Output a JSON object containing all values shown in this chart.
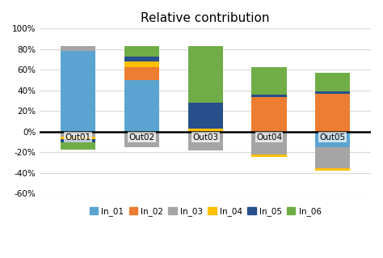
{
  "categories": [
    "Out01",
    "Out02",
    "Out03",
    "Out04",
    "Out05"
  ],
  "series": {
    "In_01": [
      78,
      50,
      0,
      0,
      0
    ],
    "In_02": [
      0,
      13,
      0,
      34,
      37
    ],
    "In_03": [
      5,
      0,
      0,
      0,
      0
    ],
    "In_04": [
      0,
      5,
      3,
      0,
      0
    ],
    "In_05": [
      0,
      5,
      25,
      2,
      2
    ],
    "In_06": [
      0,
      10,
      55,
      27,
      18
    ]
  },
  "neg_series": {
    "In_01": [
      0,
      0,
      0,
      0,
      -15
    ],
    "In_02": [
      0,
      0,
      0,
      0,
      0
    ],
    "In_03": [
      -5,
      -15,
      -18,
      -22,
      -20
    ],
    "In_04": [
      -2,
      0,
      0,
      -2,
      -3
    ],
    "In_05": [
      -3,
      0,
      0,
      0,
      0
    ],
    "In_06": [
      -7,
      0,
      0,
      0,
      0
    ]
  },
  "colors": {
    "In_01": "#5BA3D0",
    "In_02": "#ED7D31",
    "In_03": "#A5A5A5",
    "In_04": "#FFC000",
    "In_05": "#264F8C",
    "In_06": "#70AD47"
  },
  "title": "Relative contribution",
  "ylim": [
    -60,
    100
  ],
  "yticks": [
    -60,
    -40,
    -20,
    0,
    20,
    40,
    60,
    80,
    100
  ],
  "ytick_labels": [
    "-60%",
    "-40%",
    "-20%",
    "0%",
    "20%",
    "40%",
    "60%",
    "80%",
    "100%"
  ],
  "background_color": "#ffffff",
  "bar_width": 0.55
}
